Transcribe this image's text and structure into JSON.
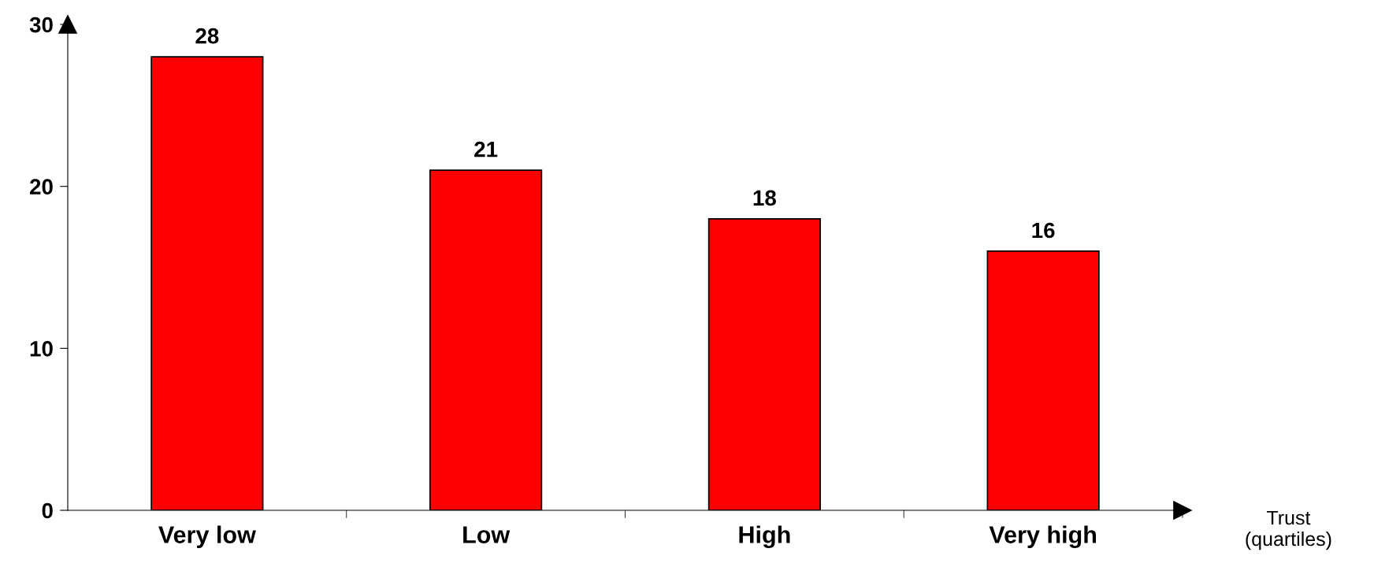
{
  "chart_data": {
    "type": "bar",
    "xlabel": "Trust\n(quartiles)",
    "categories": [
      "Very low",
      "Low",
      "High",
      "Very high"
    ],
    "values": [
      28,
      21,
      18,
      16
    ],
    "color": "#ff0000",
    "ylim": [
      0,
      30
    ],
    "yticks": [
      0,
      10,
      20,
      30
    ],
    "data_labels": true
  }
}
